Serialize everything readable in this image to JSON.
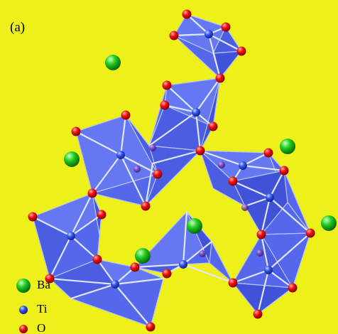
{
  "panel_label": "(a)",
  "legend": [
    {
      "label": "Ba",
      "color": "#22cc22"
    },
    {
      "label": "Ti",
      "color": "#3355ee"
    },
    {
      "label": "O",
      "color": "#ee1111"
    }
  ],
  "colors": {
    "background": "#eef019",
    "polyhedron_fill": "#5a6ef0",
    "polyhedron_dark": "#3f52d8",
    "barium": "#22cc22",
    "titanium": "#3355ee",
    "oxygen": "#ee1111"
  }
}
